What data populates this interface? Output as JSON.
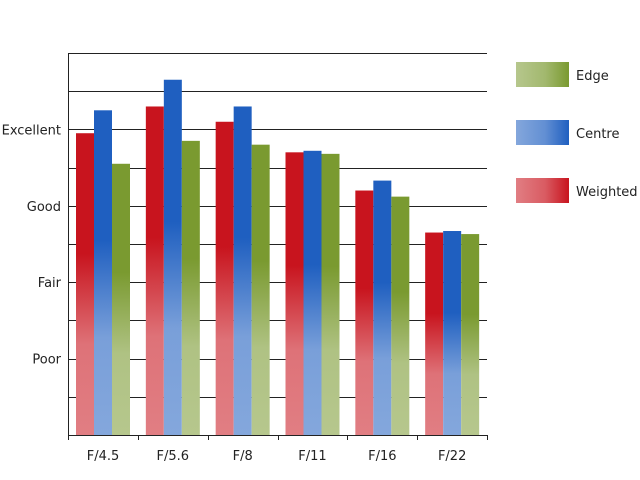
{
  "chart_data": {
    "type": "bar",
    "categories": [
      "F/4.5",
      "F/5.6",
      "F/8",
      "F/11",
      "F/16",
      "F/22"
    ],
    "y_tick_labels": [
      {
        "value": 1,
        "label": "Poor"
      },
      {
        "value": 2,
        "label": "Fair"
      },
      {
        "value": 3,
        "label": "Good"
      },
      {
        "value": 4,
        "label": "Excellent"
      }
    ],
    "ylim": [
      0,
      5
    ],
    "grid": true,
    "legend_position": "right",
    "series": [
      {
        "name": "Weighted",
        "color": "#c8141e",
        "values": [
          3.95,
          4.3,
          4.1,
          3.7,
          3.2,
          2.65
        ]
      },
      {
        "name": "Centre",
        "color": "#1f5fc0",
        "values": [
          4.25,
          4.65,
          4.3,
          3.72,
          3.33,
          2.67
        ]
      },
      {
        "name": "Edge",
        "color": "#7a9a30",
        "values": [
          3.55,
          3.85,
          3.8,
          3.68,
          3.12,
          2.63
        ]
      }
    ],
    "legend_order": [
      "Edge",
      "Centre",
      "Weighted"
    ],
    "title": "",
    "xlabel": "",
    "ylabel": ""
  }
}
